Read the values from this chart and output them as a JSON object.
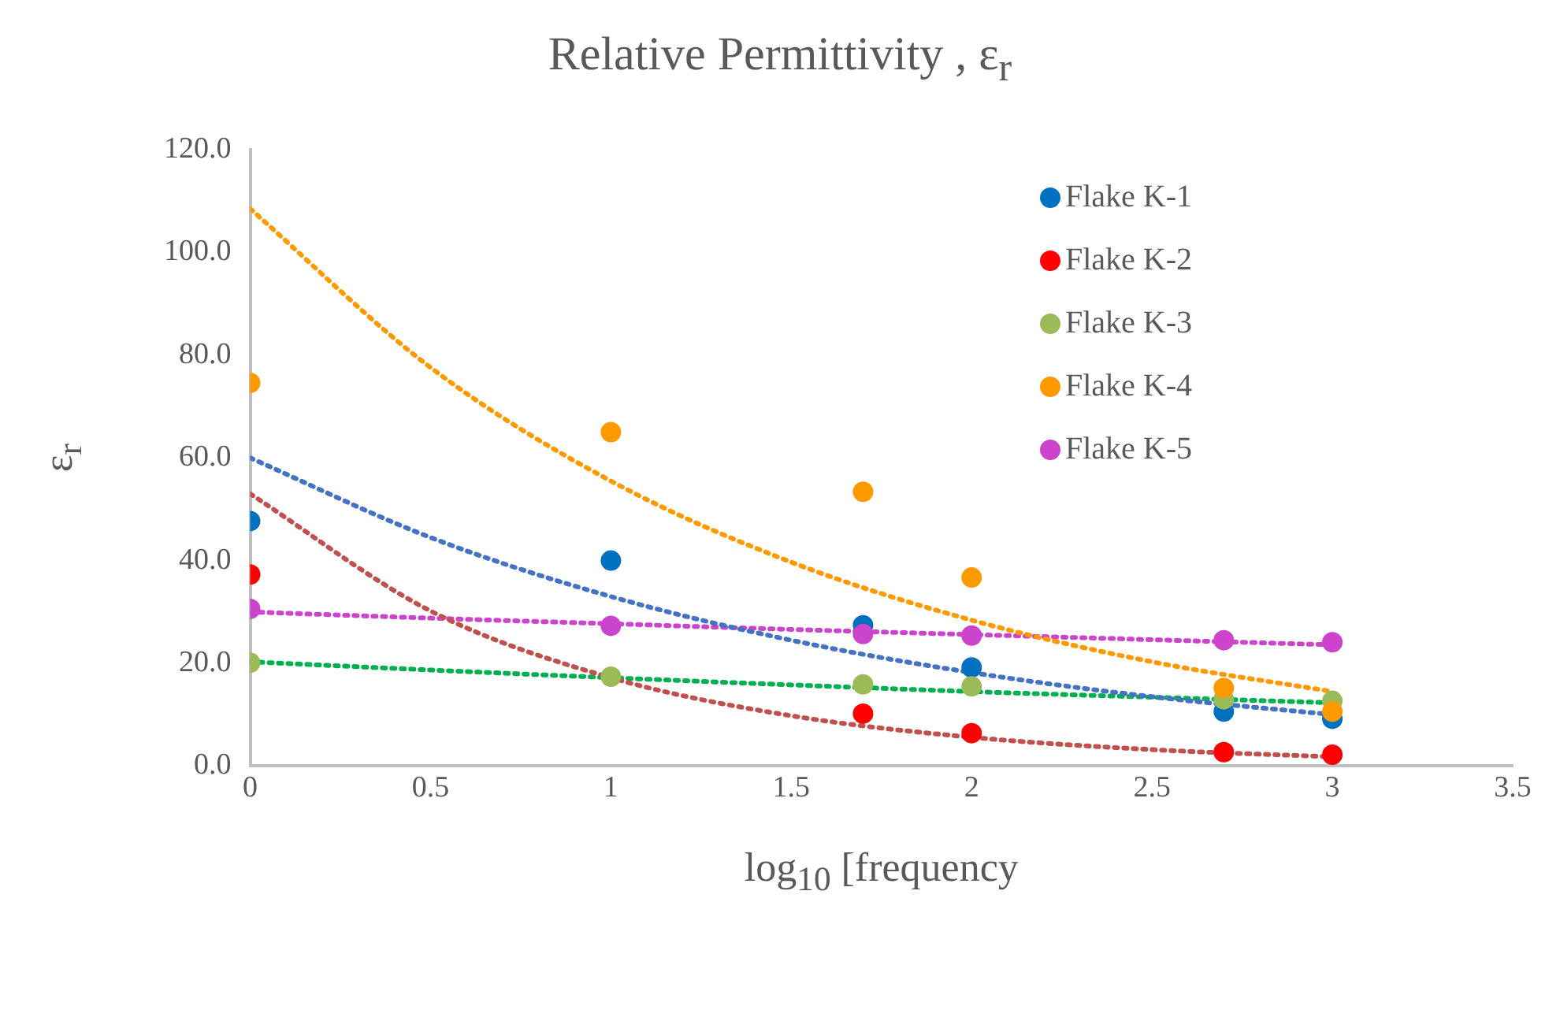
{
  "chart_data": {
    "type": "scatter",
    "title": "Relative Permittivity , ε$_{r}$",
    "xlabel": "log$_{10}$ [frequency",
    "ylabel": "ε$_{r}$",
    "x": [
      0,
      1,
      1.699,
      2,
      2.699,
      3
    ],
    "series": [
      {
        "name": "Flake K-1",
        "color": "#0070c0",
        "values": [
          47.7,
          40.0,
          27.4,
          19.2,
          10.6,
          9.2
        ]
      },
      {
        "name": "Flake K-2",
        "color": "#ff0000",
        "values": [
          37.3,
          null,
          10.2,
          6.4,
          2.7,
          2.2
        ]
      },
      {
        "name": "Flake K-3",
        "color": "#9bbb59",
        "values": [
          20.1,
          17.4,
          15.9,
          15.5,
          13.0,
          12.7
        ]
      },
      {
        "name": "Flake K-4",
        "color": "#ff9900",
        "values": [
          74.6,
          65.0,
          53.4,
          36.7,
          15.2,
          10.6
        ]
      },
      {
        "name": "Flake K-5",
        "color": "#cc44cc",
        "values": [
          30.6,
          27.3,
          25.7,
          25.4,
          24.5,
          24.1
        ]
      },
      {
        "type": "line",
        "color": "#4472c4",
        "line_style": "dotted",
        "marker": "none",
        "x": [
          0,
          0.5,
          1,
          1.5,
          2,
          2.5,
          3
        ],
        "values": [
          60,
          44.5,
          33,
          24.5,
          18.2,
          13.5,
          10
        ]
      },
      {
        "type": "line",
        "color": "#c0504d",
        "line_style": "dotted",
        "marker": "none",
        "x": [
          0,
          0.5,
          1,
          1.5,
          2,
          2.5,
          3
        ],
        "values": [
          53,
          30.2,
          17.2,
          9.8,
          5.6,
          3.2,
          1.8
        ]
      },
      {
        "type": "line",
        "color": "#00b050",
        "line_style": "dotted",
        "marker": "none",
        "x": [
          0,
          0.5,
          1,
          1.5,
          2,
          2.5,
          3
        ],
        "values": [
          20.3,
          18.7,
          17.2,
          15.8,
          14.5,
          13.4,
          12.3
        ]
      },
      {
        "type": "line",
        "color": "#ff9900",
        "line_style": "dotted",
        "marker": "none",
        "x": [
          0,
          0.5,
          1,
          1.5,
          2,
          2.5,
          3
        ],
        "values": [
          108.5,
          77.6,
          55.5,
          39.7,
          28.4,
          20.3,
          14.5
        ]
      },
      {
        "type": "line",
        "color": "#cc44cc",
        "line_style": "dotted",
        "marker": "none",
        "x": [
          0,
          0.5,
          1,
          1.5,
          2,
          2.5,
          3
        ],
        "values": [
          30,
          28.8,
          27.7,
          26.6,
          25.6,
          24.6,
          23.6
        ]
      }
    ],
    "xlim": [
      0,
      3.5
    ],
    "xticks": [
      0,
      0.5,
      1,
      1.5,
      2,
      2.5,
      3,
      3.5
    ],
    "ylim": [
      0,
      120
    ],
    "yticks": [
      {
        "value": 0,
        "label": "0.0"
      },
      {
        "value": 20,
        "label": "20.0"
      },
      {
        "value": 40,
        "label": "40.0"
      },
      {
        "value": 60,
        "label": "60.0"
      },
      {
        "value": 80,
        "label": "80.0"
      },
      {
        "value": 100,
        "label": "100.0"
      },
      {
        "value": 120,
        "label": "120.0"
      }
    ],
    "grid": false,
    "legend": "top right",
    "marker": "circle"
  }
}
